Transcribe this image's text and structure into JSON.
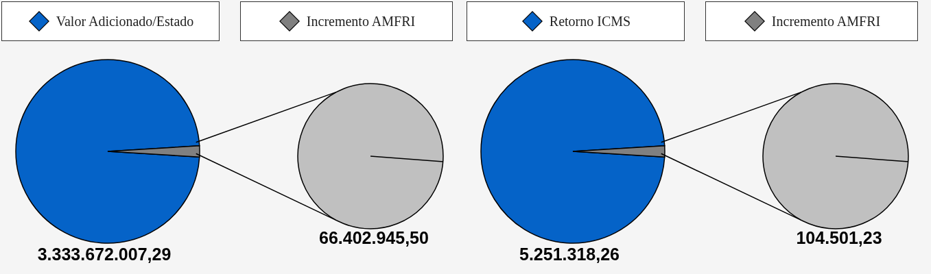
{
  "chart_data": [
    {
      "type": "pie",
      "categories": [
        "Valor Adicionado/Estado",
        "Incremento AMFRI"
      ],
      "values": [
        3333672007.29,
        66402945.5
      ],
      "colors": [
        "#0563c8",
        "#808080"
      ],
      "value_labels": [
        "3.333.672.007,29",
        "66.402.945,50"
      ],
      "legend": "top"
    },
    {
      "type": "pie",
      "categories": [
        "Retorno ICMS",
        "Incremento AMFRI"
      ],
      "values": [
        5251318.26,
        104501.23
      ],
      "colors": [
        "#0563c8",
        "#808080"
      ],
      "value_labels": [
        "5.251.318,26",
        "104.501,23"
      ],
      "legend": "top"
    }
  ]
}
